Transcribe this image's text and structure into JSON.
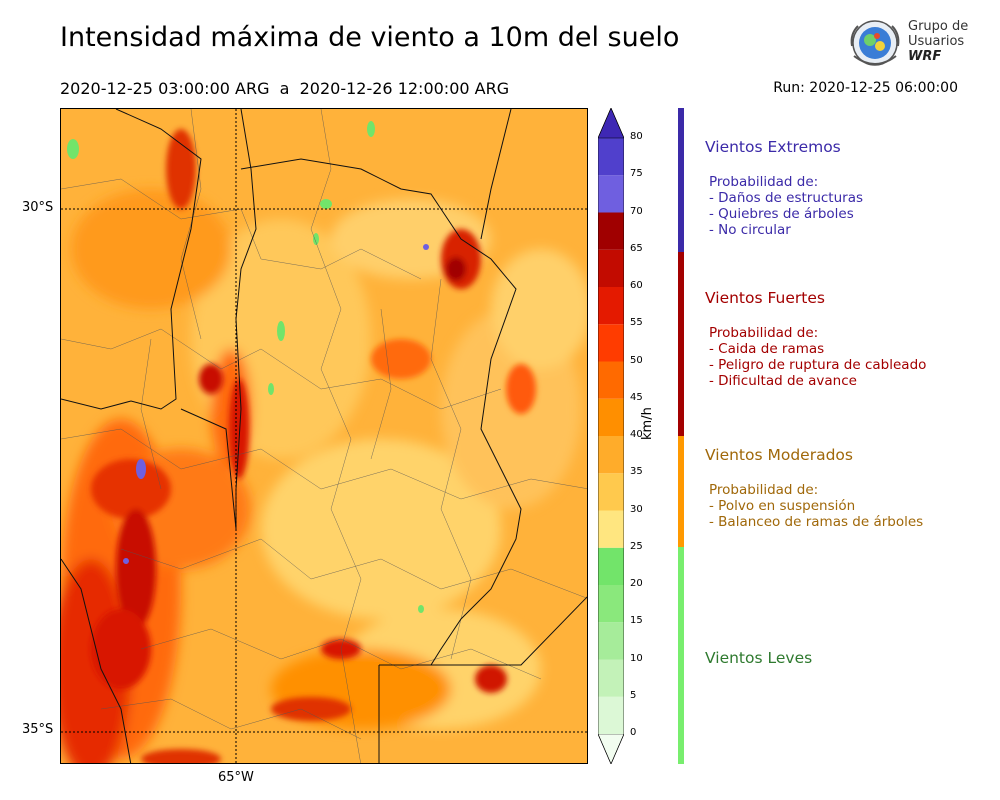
{
  "header": {
    "title": "Intensidad máxima de viento a 10m del suelo",
    "period": "2020-12-25 03:00:00 ARG  a  2020-12-26 12:00:00 ARG",
    "run": "Run: 2020-12-25 06:00:00"
  },
  "logo": {
    "line1": "Grupo de",
    "line2": "Usuarios",
    "line3": "WRF"
  },
  "map": {
    "lat_labels": [
      "30°S",
      "35°S"
    ],
    "lon_labels": [
      "65°W"
    ]
  },
  "colorbar": {
    "unit": "km/h",
    "ticks": [
      "0",
      "5",
      "10",
      "15",
      "20",
      "25",
      "30",
      "35",
      "40",
      "45",
      "50",
      "55",
      "60",
      "65",
      "70",
      "75",
      "80"
    ],
    "colors": [
      "#f2fdf0",
      "#dcf8d6",
      "#c3f2b8",
      "#a6ec9a",
      "#8ae87c",
      "#72e46a",
      "#ffe680",
      "#ffc94d",
      "#ffac2a",
      "#ff8f00",
      "#ff6a00",
      "#ff3c00",
      "#e41a00",
      "#c20b00",
      "#a00000",
      "#6f5fe0",
      "#5040cc",
      "#3e28b4"
    ]
  },
  "categories": [
    {
      "title": "Vientos Extremos",
      "color": "#3b2aa8",
      "desc": [
        "Probabilidad de:",
        "- Daños de estructuras",
        "- Quiebres de árboles",
        "- No circular"
      ]
    },
    {
      "title": "Vientos Fuertes",
      "color": "#a30000",
      "desc": [
        "Probabilidad de:",
        "- Caida de ramas",
        "- Peligro de ruptura de cableado",
        "- Dificultad de avance"
      ]
    },
    {
      "title": "Vientos Moderados",
      "color": "#a0680a",
      "bar_color": "#ff9900",
      "desc": [
        "Probabilidad de:",
        "- Polvo en suspensión",
        "- Balanceo de ramas de árboles"
      ]
    },
    {
      "title": "Vientos Leves",
      "color": "#2f7a2f",
      "bar_color": "#78ee6e",
      "desc": []
    }
  ]
}
